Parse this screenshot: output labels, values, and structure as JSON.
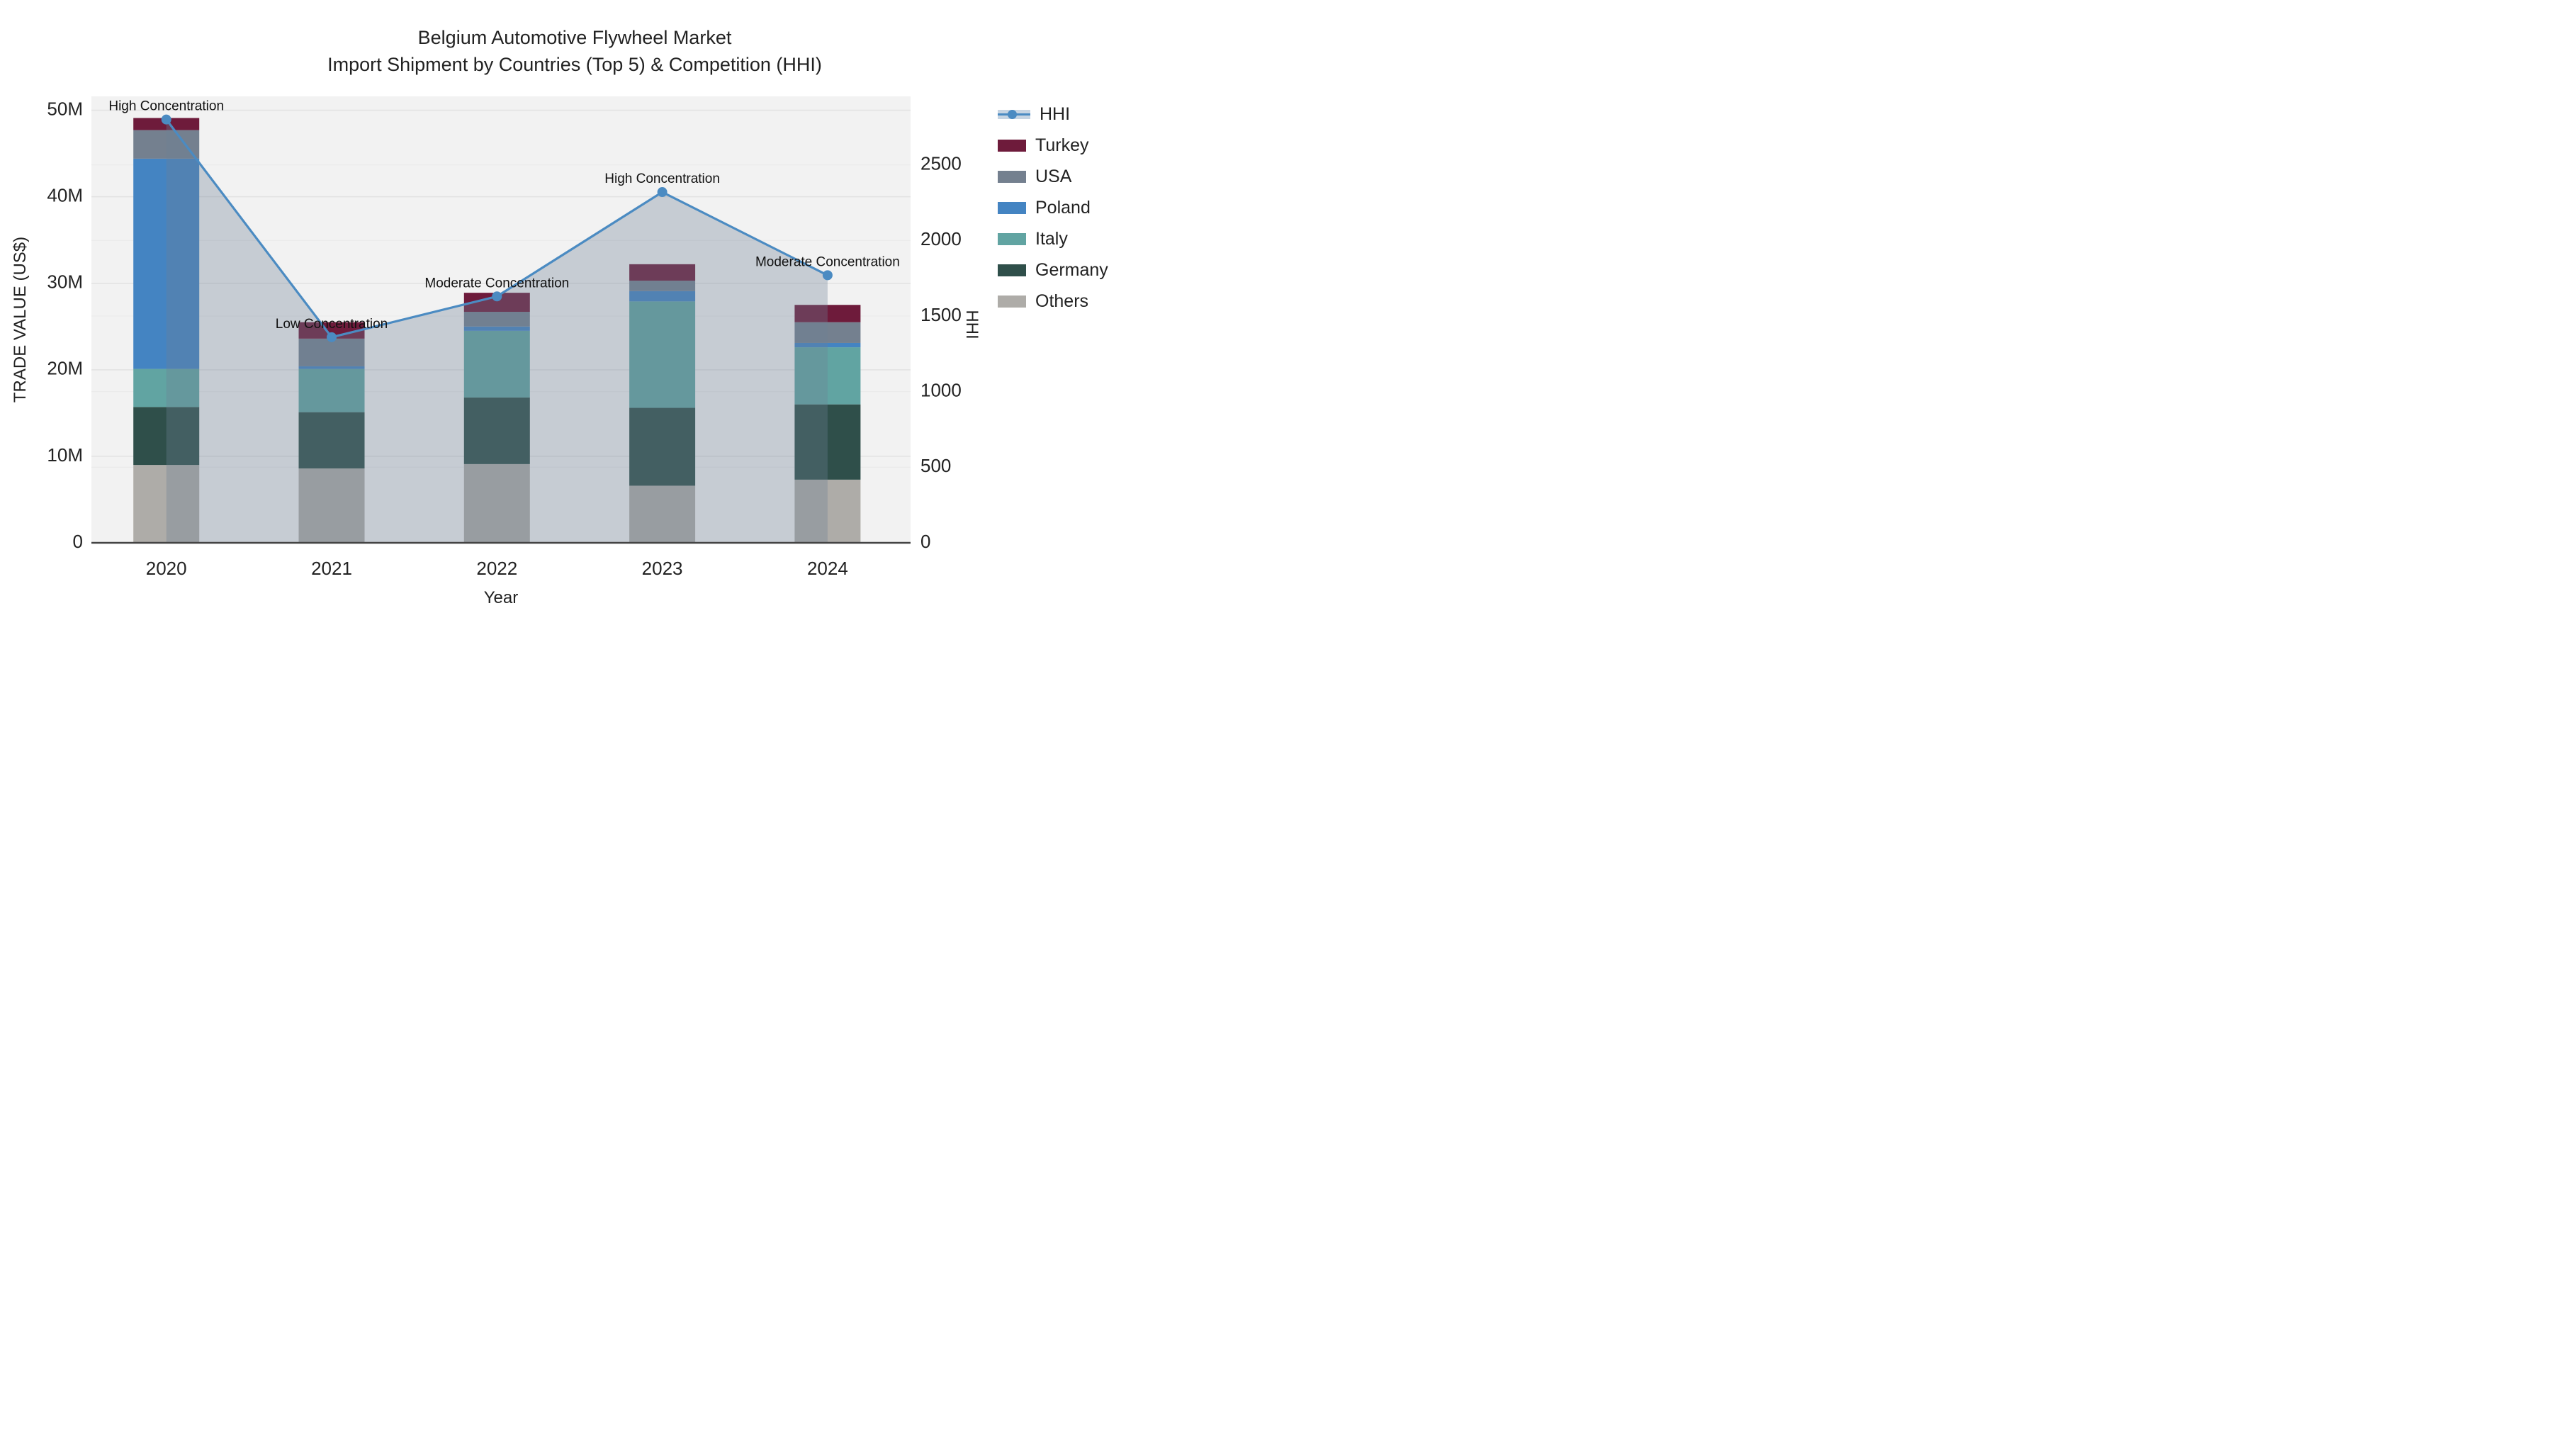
{
  "title": {
    "line1": "Belgium Automotive Flywheel Market",
    "line2": "Import Shipment by Countries (Top 5) & Competition (HHI)"
  },
  "chart_data": {
    "type": "bar+line combo (stacked bars with HHI line and area fill)",
    "categories": [
      "2020",
      "2021",
      "2022",
      "2023",
      "2024"
    ],
    "bar_unit": "US$ millions",
    "bar_series": [
      {
        "name": "Others",
        "values": [
          9.0,
          8.6,
          9.1,
          6.6,
          7.3
        ]
      },
      {
        "name": "Germany",
        "values": [
          6.7,
          6.5,
          7.7,
          9.0,
          8.7
        ]
      },
      {
        "name": "Italy",
        "values": [
          4.4,
          5.0,
          7.7,
          12.3,
          6.6
        ]
      },
      {
        "name": "Poland",
        "values": [
          24.3,
          0.3,
          0.5,
          1.2,
          0.5
        ]
      },
      {
        "name": "USA",
        "values": [
          3.3,
          3.2,
          1.7,
          1.2,
          2.4
        ]
      },
      {
        "name": "Turkey",
        "values": [
          1.4,
          1.9,
          2.2,
          1.9,
          2.0
        ]
      }
    ],
    "bar_totals": [
      49.1,
      25.5,
      28.9,
      32.2,
      27.5
    ],
    "line_series": {
      "name": "HHI",
      "values": [
        2800,
        1360,
        1630,
        2320,
        1770
      ]
    },
    "annotations": [
      "High Concentration",
      "Low Concentration",
      "Moderate Concentration",
      "High Concentration",
      "Moderate Concentration"
    ],
    "xlabel": "Year",
    "ylabel_left": "TRADE VALUE (US$)",
    "ylabel_right": "HHI",
    "yticks_left": [
      {
        "v": 0,
        "label": "0"
      },
      {
        "v": 10,
        "label": "10M"
      },
      {
        "v": 20,
        "label": "20M"
      },
      {
        "v": 30,
        "label": "30M"
      },
      {
        "v": 40,
        "label": "40M"
      },
      {
        "v": 50,
        "label": "50M"
      }
    ],
    "yticks_right": [
      {
        "v": 0,
        "label": "0"
      },
      {
        "v": 500,
        "label": "500"
      },
      {
        "v": 1000,
        "label": "1000"
      },
      {
        "v": 1500,
        "label": "1500"
      },
      {
        "v": 2000,
        "label": "2000"
      },
      {
        "v": 2500,
        "label": "2500"
      }
    ],
    "ylim_left": [
      0,
      51.6
    ],
    "ylim_right": [
      0,
      2953
    ],
    "grid": "on",
    "legend_position": "right",
    "legend_order": [
      "HHI",
      "Turkey",
      "USA",
      "Poland",
      "Italy",
      "Germany",
      "Others"
    ]
  },
  "colors": {
    "Turkey": "#6e1b3b",
    "USA": "#74808f",
    "Poland": "#4484c2",
    "Italy": "#61a4a2",
    "Germany": "#2f4f4a",
    "Others": "#aeaca8",
    "hhi_line": "#4b8bc2",
    "hhi_area": "rgba(108,126,150,0.33)",
    "plot_bg": "#f2f2f2",
    "grid_left": "#e2e2e2",
    "grid_right": "#ebebeb",
    "axis_line": "#444444",
    "text": "#222222"
  }
}
